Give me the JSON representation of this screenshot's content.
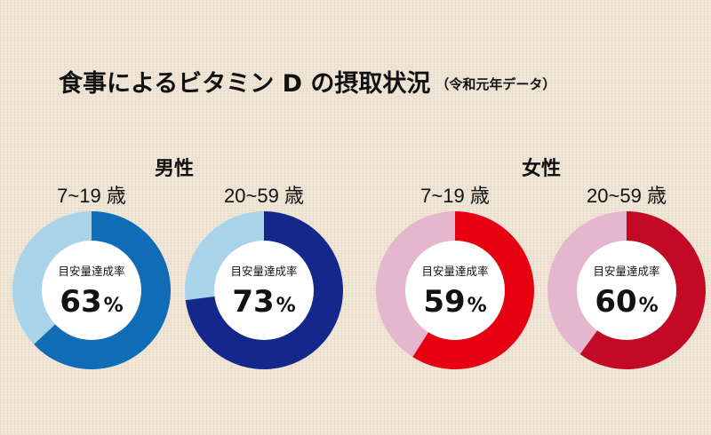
{
  "title": "食事によるビタミン D の摂取状況",
  "title_note": "（令和元年データ）",
  "groups": [
    {
      "label": "男性"
    },
    {
      "label": "女性"
    }
  ],
  "center_caption": "目安量達成率",
  "chart_data": [
    {
      "type": "pie",
      "group": "男性",
      "title": "7~19 歳",
      "value": 63,
      "unit": "%",
      "colors": {
        "achieved": "#0f6cb5",
        "remainder": "#a8d3e9"
      }
    },
    {
      "type": "pie",
      "group": "男性",
      "title": "20~59 歳",
      "value": 73,
      "unit": "%",
      "colors": {
        "achieved": "#14278a",
        "remainder": "#a8d3e9"
      }
    },
    {
      "type": "pie",
      "group": "女性",
      "title": "7~19 歳",
      "value": 59,
      "unit": "%",
      "colors": {
        "achieved": "#e60012",
        "remainder": "#e4b7ce"
      }
    },
    {
      "type": "pie",
      "group": "女性",
      "title": "20~59 歳",
      "value": 60,
      "unit": "%",
      "colors": {
        "achieved": "#c20a24",
        "remainder": "#e4b7ce"
      }
    }
  ]
}
